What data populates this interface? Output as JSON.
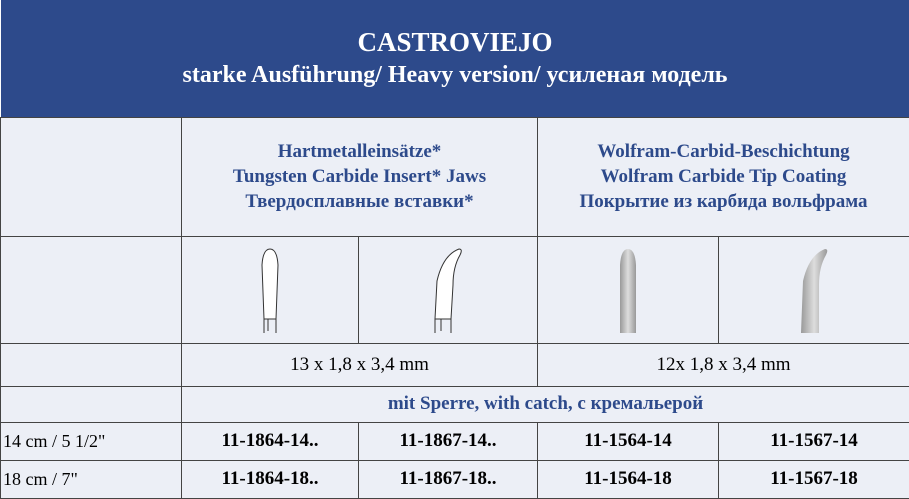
{
  "header": {
    "title": "CASTROVIEJO",
    "subtitle": "starke Ausführung/ Heavy version/ усиленая модель"
  },
  "table": {
    "col_groups": [
      {
        "lines": [
          "Hartmetalleinsätze*",
          "Tungsten Carbide Insert* Jaws",
          "Твердосплавные вставки*"
        ]
      },
      {
        "lines": [
          "Wolfram-Carbid-Beschichtung",
          "Wolfram Carbide Tip Coating",
          "Покрытие из карбида вольфрама"
        ]
      }
    ],
    "sizes": [
      "13 x 1,8 x 3,4 mm",
      "12x 1,8 x 3,4 mm"
    ],
    "catch_note": "mit Sperre, with catch, с кремальерой",
    "rows": [
      [
        "14 cm / 5 1/2\"",
        "11-1864-14..",
        "11-1867-14..",
        "11-1564-14",
        "11-1567-14"
      ],
      [
        "18 cm / 7\"",
        "11-1864-18..",
        "11-1867-18..",
        "11-1564-18",
        "11-1567-18"
      ]
    ]
  }
}
